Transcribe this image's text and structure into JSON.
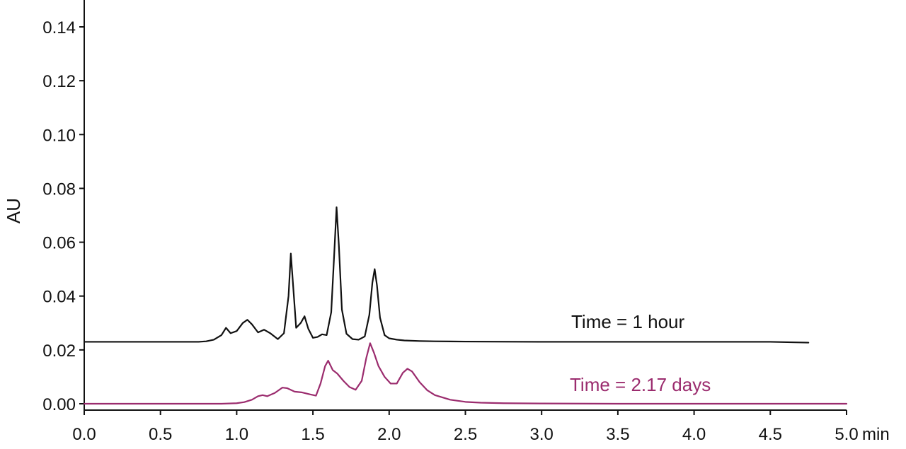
{
  "chart_data": {
    "type": "line",
    "title": "",
    "xlabel": "min",
    "ylabel": "AU",
    "xlim": [
      0.0,
      5.0
    ],
    "ylim": [
      -0.002,
      0.15
    ],
    "grid": false,
    "legend": "inline",
    "x_ticks": [
      {
        "value": 0.0,
        "label": "0.0"
      },
      {
        "value": 0.5,
        "label": "0.5"
      },
      {
        "value": 1.0,
        "label": "1.0"
      },
      {
        "value": 1.5,
        "label": "1.5"
      },
      {
        "value": 2.0,
        "label": "2.0"
      },
      {
        "value": 2.5,
        "label": "2.5"
      },
      {
        "value": 3.0,
        "label": "3.0"
      },
      {
        "value": 3.5,
        "label": "3.5"
      },
      {
        "value": 4.0,
        "label": "4.0"
      },
      {
        "value": 4.5,
        "label": "4.5"
      },
      {
        "value": 5.0,
        "label": "5.0"
      }
    ],
    "y_ticks": [
      {
        "value": 0.0,
        "label": "0.00"
      },
      {
        "value": 0.02,
        "label": "0.02"
      },
      {
        "value": 0.04,
        "label": "0.04"
      },
      {
        "value": 0.06,
        "label": "0.06"
      },
      {
        "value": 0.08,
        "label": "0.08"
      },
      {
        "value": 0.1,
        "label": "0.10"
      },
      {
        "value": 0.12,
        "label": "0.12"
      },
      {
        "value": 0.14,
        "label": "0.14"
      }
    ],
    "series": [
      {
        "name": "Time = 1 hour",
        "color": "#111111",
        "x": [
          0.0,
          0.75,
          0.8,
          0.85,
          0.9,
          0.93,
          0.96,
          1.0,
          1.04,
          1.07,
          1.1,
          1.14,
          1.18,
          1.22,
          1.27,
          1.31,
          1.34,
          1.355,
          1.37,
          1.39,
          1.42,
          1.445,
          1.47,
          1.5,
          1.53,
          1.56,
          1.59,
          1.62,
          1.64,
          1.655,
          1.67,
          1.69,
          1.72,
          1.76,
          1.8,
          1.84,
          1.87,
          1.89,
          1.905,
          1.92,
          1.94,
          1.97,
          2.0,
          2.05,
          2.1,
          2.2,
          2.3,
          2.5,
          3.0,
          3.5,
          4.0,
          4.5,
          4.75
        ],
        "y": [
          0.023,
          0.023,
          0.0232,
          0.0238,
          0.0255,
          0.0282,
          0.0262,
          0.027,
          0.03,
          0.0312,
          0.0295,
          0.0265,
          0.0275,
          0.0262,
          0.024,
          0.0262,
          0.04,
          0.0558,
          0.044,
          0.0282,
          0.03,
          0.0325,
          0.0278,
          0.0245,
          0.0248,
          0.0258,
          0.0255,
          0.034,
          0.056,
          0.073,
          0.059,
          0.035,
          0.026,
          0.024,
          0.0238,
          0.025,
          0.033,
          0.045,
          0.05,
          0.044,
          0.032,
          0.0255,
          0.0243,
          0.0238,
          0.0235,
          0.0233,
          0.0232,
          0.0231,
          0.023,
          0.023,
          0.023,
          0.023,
          0.0227
        ]
      },
      {
        "name": "Time = 2.17 days",
        "color": "#9B2C6E",
        "x": [
          0.0,
          0.9,
          1.0,
          1.05,
          1.1,
          1.14,
          1.17,
          1.2,
          1.25,
          1.3,
          1.33,
          1.38,
          1.43,
          1.48,
          1.52,
          1.55,
          1.58,
          1.6,
          1.63,
          1.66,
          1.7,
          1.74,
          1.78,
          1.82,
          1.85,
          1.875,
          1.9,
          1.93,
          1.97,
          2.01,
          2.05,
          2.09,
          2.12,
          2.15,
          2.2,
          2.25,
          2.3,
          2.4,
          2.5,
          2.6,
          2.75,
          3.0,
          3.5,
          4.0,
          4.5,
          5.0
        ],
        "y": [
          0.0,
          0.0,
          0.0002,
          0.0006,
          0.0015,
          0.0028,
          0.0032,
          0.0028,
          0.004,
          0.006,
          0.0058,
          0.0045,
          0.0042,
          0.0035,
          0.003,
          0.0075,
          0.014,
          0.016,
          0.0125,
          0.0112,
          0.0085,
          0.0062,
          0.0052,
          0.0085,
          0.017,
          0.0225,
          0.019,
          0.014,
          0.01,
          0.0075,
          0.0075,
          0.0115,
          0.013,
          0.012,
          0.008,
          0.005,
          0.0032,
          0.0015,
          0.0007,
          0.0004,
          0.0002,
          0.0001,
          0.0,
          0.0,
          0.0,
          0.0
        ]
      }
    ]
  }
}
